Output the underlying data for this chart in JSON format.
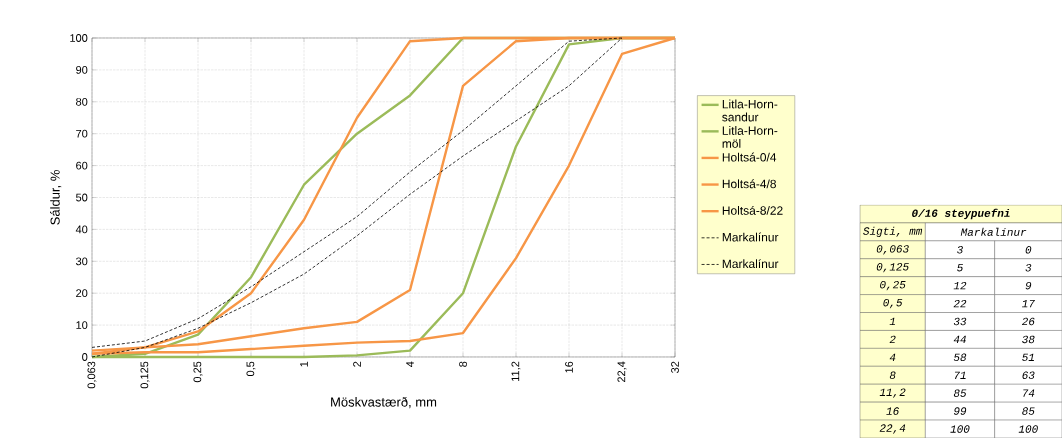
{
  "chart_data": [
    {
      "type": "line",
      "xlabel": "Möskvastærð, mm",
      "ylabel": "Sáldur, %",
      "categories": [
        "0,063",
        "0,125",
        "0,25",
        "0,5",
        "1",
        "2",
        "4",
        "8",
        "11,2",
        "16",
        "22,4",
        "32"
      ],
      "ylim": [
        0,
        100
      ],
      "yticks": [
        0,
        10,
        20,
        30,
        40,
        50,
        60,
        70,
        80,
        90,
        100
      ],
      "grid": true,
      "legend": "right",
      "series": [
        {
          "name": "Litla-Horn-sandur",
          "color": "#9bbb59",
          "values": [
            0,
            1,
            7,
            25,
            54,
            70,
            82,
            100,
            100,
            100,
            100,
            100
          ]
        },
        {
          "name": "Litla-Horn-möl",
          "color": "#9bbb59",
          "values": [
            0,
            0,
            0,
            0,
            0,
            0.5,
            2,
            20,
            66,
            98,
            100,
            100
          ]
        },
        {
          "name": "Holtsá-0/4",
          "color": "#f79646",
          "values": [
            2,
            3,
            8,
            20,
            43,
            75,
            99,
            100,
            100,
            100,
            100,
            100
          ]
        },
        {
          "name": "Holtsá-4/8",
          "color": "#f79646",
          "values": [
            1,
            3,
            4,
            6.5,
            9,
            11,
            21,
            85,
            99,
            100,
            100,
            100
          ]
        },
        {
          "name": "Holtsá-8/22",
          "color": "#f79646",
          "values": [
            1,
            1.5,
            1.5,
            2.5,
            3.5,
            4.5,
            5,
            7.5,
            31,
            60,
            95,
            100
          ]
        },
        {
          "name": "Markalínur",
          "color": "#000000",
          "line_style": "dashed",
          "values": [
            3,
            5,
            12,
            22,
            33,
            44,
            58,
            71,
            85,
            99,
            100,
            null
          ]
        },
        {
          "name": "Markalínur",
          "color": "#000000",
          "line_style": "dashed",
          "values": [
            0,
            3,
            9,
            17,
            26,
            38,
            51,
            63,
            74,
            85,
            100,
            null
          ]
        }
      ]
    },
    {
      "type": "other",
      "title": "0/16 steypuefni",
      "data_labels": true,
      "annotations": [
        "Sigti, mm",
        "Markalínur"
      ],
      "categories": [
        "0,063",
        "0,125",
        "0,25",
        "0,5",
        "1",
        "2",
        "4",
        "8",
        "11,2",
        "16",
        "22,4"
      ],
      "series": [
        {
          "values": [
            3,
            5,
            12,
            22,
            33,
            44,
            58,
            71,
            85,
            99,
            100
          ]
        },
        {
          "values": [
            0,
            3,
            9,
            17,
            26,
            38,
            51,
            63,
            74,
            85,
            100
          ]
        }
      ]
    }
  ]
}
